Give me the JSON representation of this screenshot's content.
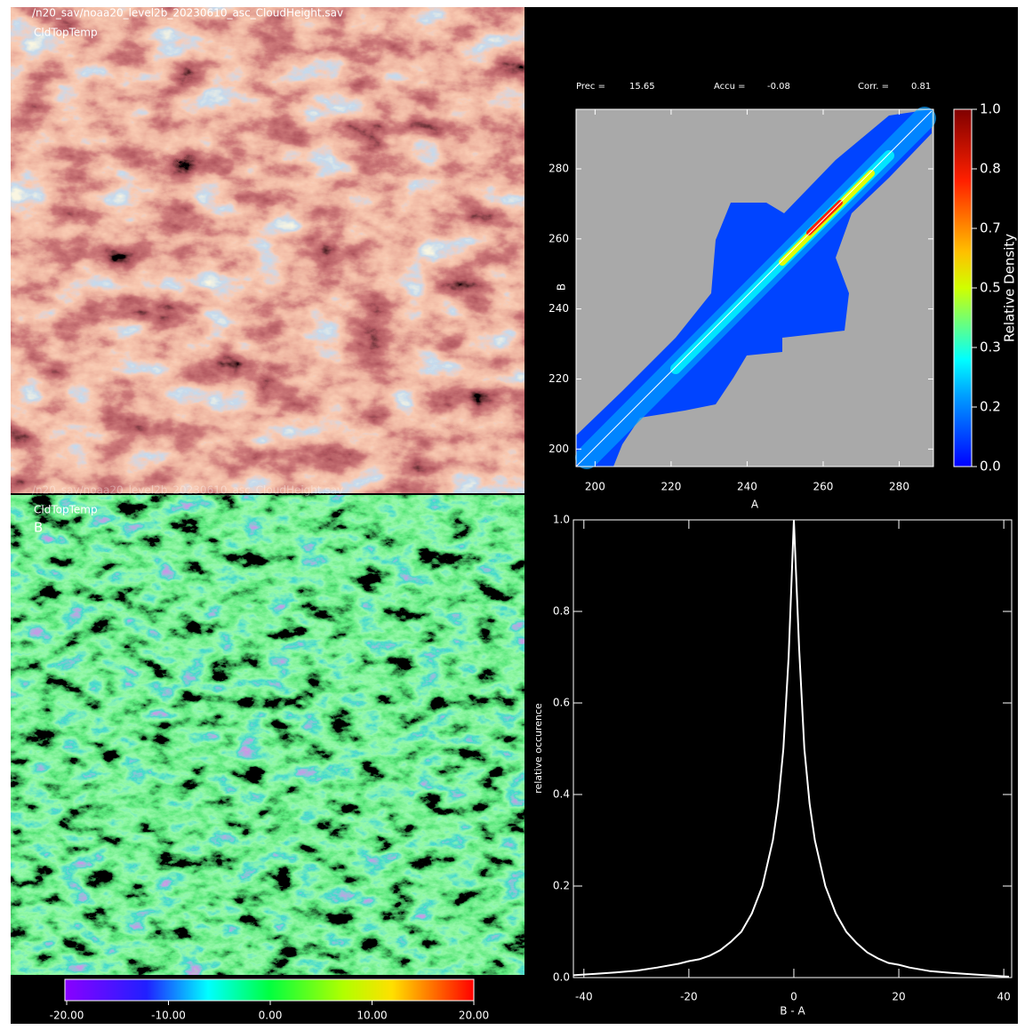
{
  "map_a": {
    "file": "/n20_sav/noaa20_level2b_20230610_asc_CloudHeight.sav",
    "variable": "CldTopTemp"
  },
  "map_b": {
    "file": "/n20_sav/noaa20_level2b_20230610_asc_CloudHeight.sav",
    "variable": "CldTopTemp",
    "label": "B",
    "colorbar": {
      "xlim": [
        -20,
        20
      ],
      "xticks": [
        {
          "value": -20,
          "label": "-20.00"
        },
        {
          "value": -10,
          "label": "-10.00"
        },
        {
          "value": 0,
          "label": "0.00"
        },
        {
          "value": 10,
          "label": "10.00"
        },
        {
          "value": 20,
          "label": "20.00"
        }
      ]
    }
  },
  "chart_data": [
    {
      "type": "density",
      "x_label": "A",
      "y_label": "B",
      "stats": [
        {
          "label": "Prec =",
          "value": 15.65
        },
        {
          "label": "Accu =",
          "value": -0.08
        },
        {
          "label": "Corr. =",
          "value": 0.81
        }
      ],
      "xlim": [
        195,
        289
      ],
      "ylim": [
        195,
        297
      ],
      "xticks": [
        200,
        220,
        240,
        260,
        280
      ],
      "yticks": [
        200,
        220,
        240,
        260,
        280
      ],
      "colorbar": {
        "label": "Relative Density",
        "ylim": [
          0,
          1
        ],
        "yticks": [
          {
            "value": 0,
            "label": "0.0"
          },
          {
            "value": 0.1667,
            "label": "0.2"
          },
          {
            "value": 0.3333,
            "label": "0.3"
          },
          {
            "value": 0.5,
            "label": "0.5"
          },
          {
            "value": 0.6667,
            "label": "0.7"
          },
          {
            "value": 0.8333,
            "label": "0.8"
          },
          {
            "value": 1,
            "label": "1.0"
          }
        ]
      }
    },
    {
      "type": "line",
      "x_label": "B - A",
      "y_label": "relative occurence",
      "color": "#ffffff",
      "xlim": [
        -42,
        41.5
      ],
      "ylim": [
        0,
        1
      ],
      "xticks": [
        -40,
        -20,
        0,
        20,
        40
      ],
      "yticks": [
        {
          "value": 0,
          "label": "0.0"
        },
        0.2,
        0.4,
        0.6,
        0.8,
        {
          "value": 1,
          "label": "1.0"
        }
      ],
      "x": [
        -42,
        -38,
        -34,
        -30,
        -26,
        -22,
        -20,
        -18,
        -16,
        -14,
        -12,
        -10,
        -8,
        -6,
        -4,
        -3,
        -2,
        -1,
        0,
        1,
        2,
        3,
        4,
        6,
        8,
        10,
        12,
        14,
        16,
        18,
        20,
        22,
        26,
        30,
        34,
        38,
        41
      ],
      "values": [
        0.005,
        0.008,
        0.011,
        0.015,
        0.022,
        0.03,
        0.036,
        0.04,
        0.048,
        0.06,
        0.078,
        0.1,
        0.14,
        0.2,
        0.3,
        0.38,
        0.5,
        0.7,
        1.0,
        0.72,
        0.5,
        0.38,
        0.3,
        0.2,
        0.14,
        0.1,
        0.075,
        0.055,
        0.042,
        0.032,
        0.028,
        0.022,
        0.014,
        0.01,
        0.007,
        0.004,
        0.002
      ]
    }
  ]
}
